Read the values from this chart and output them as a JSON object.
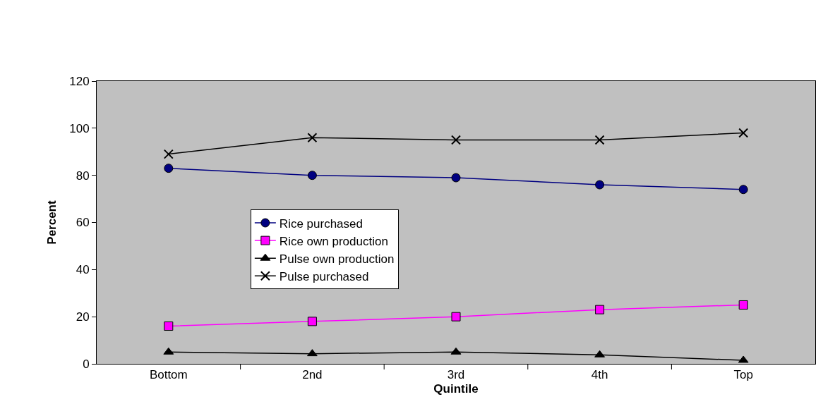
{
  "chart_data": {
    "type": "line",
    "xlabel": "Quintile",
    "ylabel": "Percent",
    "categories": [
      "Bottom",
      "2nd",
      "3rd",
      "4th",
      "Top"
    ],
    "series": [
      {
        "name": "Rice purchased",
        "color": "#000080",
        "marker": "circle",
        "values": [
          83,
          80,
          79,
          76,
          74
        ]
      },
      {
        "name": "Rice own production",
        "color": "#ff00ff",
        "marker": "square",
        "values": [
          16,
          18,
          20,
          23,
          25
        ]
      },
      {
        "name": "Pulse own production",
        "color": "#000000",
        "marker": "triangle",
        "values": [
          5,
          4.3,
          5,
          3.8,
          1.5
        ]
      },
      {
        "name": "Pulse purchased",
        "color": "#000000",
        "marker": "cross",
        "values": [
          89,
          96,
          95,
          95,
          98
        ]
      }
    ],
    "ylim": [
      0,
      120
    ],
    "yticks": [
      0,
      20,
      40,
      60,
      80,
      100,
      120
    ],
    "grid": false,
    "legend": "center",
    "line_style": "solid"
  }
}
